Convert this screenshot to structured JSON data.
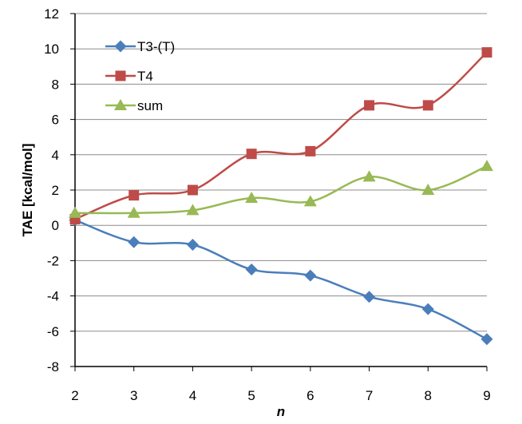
{
  "chart_data": {
    "type": "line",
    "title": "",
    "xlabel": "n",
    "ylabel": "TAE  [kcal/mol]",
    "x": [
      2,
      3,
      4,
      5,
      6,
      7,
      8,
      9
    ],
    "xlim": [
      2,
      9
    ],
    "ylim": [
      -8,
      12
    ],
    "yticks": [
      -8,
      -6,
      -4,
      -2,
      0,
      2,
      4,
      6,
      8,
      10,
      12
    ],
    "grid": "horizontal",
    "legend_position": "top-left",
    "smoothed": true,
    "series": [
      {
        "name": "T3-(T)",
        "color": "#4a7ebb",
        "marker": "diamond",
        "values": [
          0.3,
          -0.95,
          -1.1,
          -2.5,
          -2.85,
          -4.05,
          -4.75,
          -6.45
        ]
      },
      {
        "name": "T4",
        "color": "#be4b48",
        "marker": "square",
        "values": [
          0.35,
          1.7,
          2.0,
          4.05,
          4.2,
          6.8,
          6.8,
          9.8
        ]
      },
      {
        "name": "sum",
        "color": "#98b954",
        "marker": "triangle",
        "values": [
          0.7,
          0.7,
          0.85,
          1.55,
          1.35,
          2.75,
          2.0,
          3.35
        ]
      }
    ]
  }
}
